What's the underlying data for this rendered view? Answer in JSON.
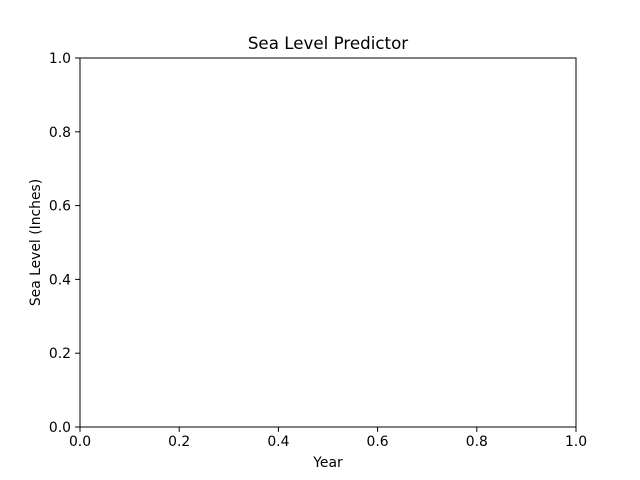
{
  "chart_data": {
    "type": "scatter",
    "title": "Sea Level Predictor",
    "xlabel": "Year",
    "ylabel": "Sea Level (Inches)",
    "xlim": [
      0.0,
      1.0
    ],
    "ylim": [
      0.0,
      1.0
    ],
    "x_ticks": [
      "0.0",
      "0.2",
      "0.4",
      "0.6",
      "0.8",
      "1.0"
    ],
    "y_ticks": [
      "0.0",
      "0.2",
      "0.4",
      "0.6",
      "0.8",
      "1.0"
    ],
    "series": [],
    "grid": false,
    "legend": "none"
  },
  "colors": {
    "background": "#ffffff",
    "axes": "#000000",
    "text": "#000000"
  }
}
